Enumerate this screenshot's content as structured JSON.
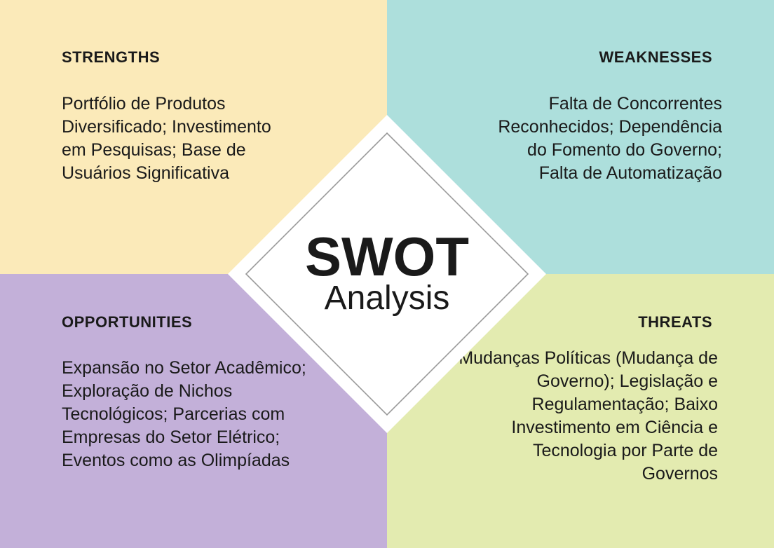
{
  "colors": {
    "strengths_bg": "#fbeab9",
    "weaknesses_bg": "#addfdc",
    "opportunities_bg": "#c3b0d9",
    "threats_bg": "#e3ebb0",
    "diamond_fill": "#ffffff",
    "diamond_outline": "#9a9a9a",
    "text": "#1a1a1a"
  },
  "center": {
    "title": "SWOT",
    "subtitle": "Analysis"
  },
  "strengths": {
    "heading": "STRENGTHS",
    "text": "Portfólio de Produtos Diversificado; Investimento em Pesquisas; Base de Usuários Significativa"
  },
  "weaknesses": {
    "heading": "WEAKNESSES",
    "text": "Falta de Concorrentes Reconhecidos; Dependência do Fomento do Governo; Falta de Automatização"
  },
  "opportunities": {
    "heading": "OPPORTUNITIES",
    "text": "Expansão no Setor Acadêmico; Exploração de Nichos Tecnológicos; Parcerias com Empresas do Setor Elétrico; Eventos como as Olimpíadas"
  },
  "threats": {
    "heading": "THREATS",
    "text": "Mudanças Políticas (Mudança de Governo); Legislação e Regulamentação; Baixo Investimento em Ciência e Tecnologia por Parte de Governos"
  }
}
